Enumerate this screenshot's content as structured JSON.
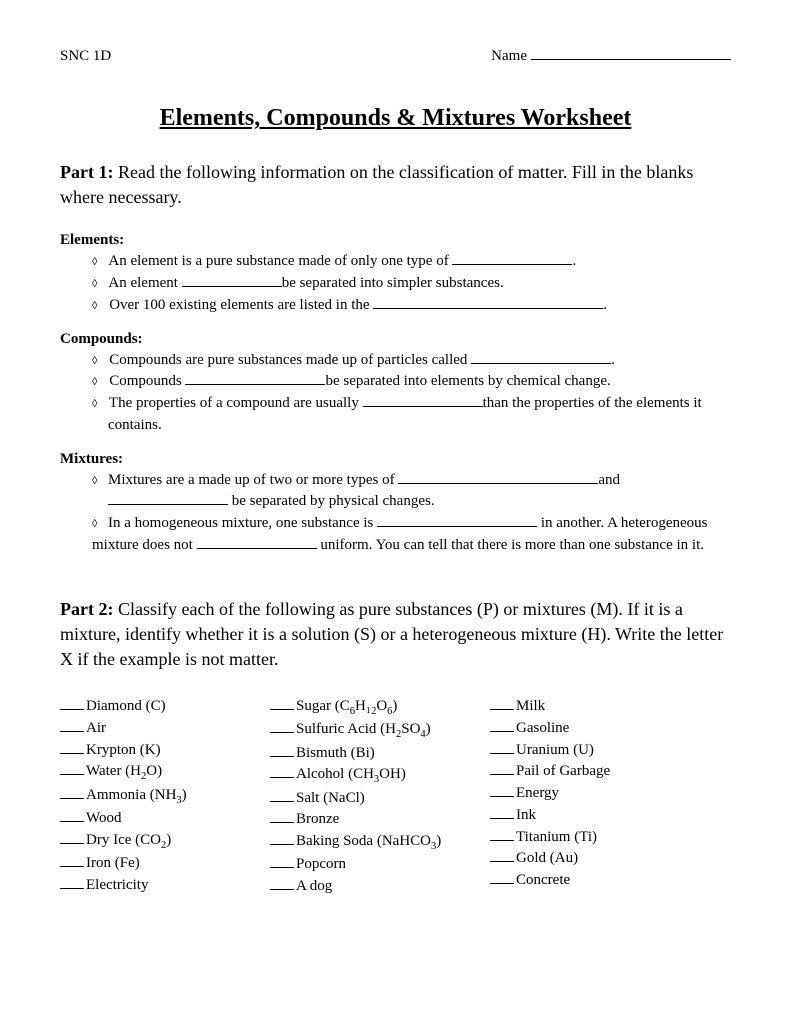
{
  "header": {
    "course_code": "SNC 1D",
    "name_label": "Name"
  },
  "title": "Elements, Compounds & Mixtures Worksheet",
  "part1": {
    "label": "Part 1:",
    "text": "Read the following information on the classification of matter.  Fill in the blanks where necessary.",
    "sections": {
      "elements": {
        "heading": "Elements:",
        "item1_a": "An element is a pure substance made of only one type of ",
        "item1_b": ".",
        "item2_a": "An element ",
        "item2_b": "be separated into simpler substances.",
        "item3_a": "Over 100 existing elements are listed in the ",
        "item3_b": "."
      },
      "compounds": {
        "heading": "Compounds:",
        "item1_a": "Compounds are pure substances made up of particles called ",
        "item1_b": ".",
        "item2_a": "Compounds ",
        "item2_b": "be separated into elements by chemical change.",
        "item3_a": "The properties of a compound are usually ",
        "item3_b": "than the properties of the elements it contains."
      },
      "mixtures": {
        "heading": "Mixtures:",
        "item1_a": "Mixtures are a made up of two or more types of ",
        "item1_b": "and",
        "item1_c": " be separated by physical changes.",
        "item2_a": "In a homogeneous mixture, one substance is ",
        "item2_b": " in another.  A heterogeneous mixture does not ",
        "item2_c": " uniform. You can tell that there is more than one substance in it."
      }
    }
  },
  "part2": {
    "label": "Part 2:",
    "text": "Classify each of the following as pure substances (P) or mixtures (M).  If it is a mixture, identify whether it is a solution (S) or a heterogeneous mixture (H).  Write the letter X if the example is not matter.",
    "columns": [
      [
        "Diamond (C)",
        "Air",
        "Krypton (K)",
        "Water (H₂O)",
        "Ammonia (NH₃)",
        "Wood",
        "Dry Ice (CO₂)",
        "Iron (Fe)",
        "Electricity"
      ],
      [
        "Sugar (C₆H₁₂O₆)",
        "Sulfuric Acid (H₂SO₄)",
        "Bismuth (Bi)",
        "Alcohol (CH₃OH)",
        "Salt (NaCl)",
        "Bronze",
        "Baking Soda (NaHCO₃)",
        "Popcorn",
        "A dog"
      ],
      [
        "Milk",
        "Gasoline",
        "Uranium (U)",
        "Pail of Garbage",
        "Energy",
        "Ink",
        "Titanium (Ti)",
        "Gold (Au)",
        "Concrete"
      ]
    ]
  },
  "colors": {
    "page_bg": "#ffffff",
    "text": "#000000",
    "surround": "#e8e8e8"
  },
  "typography": {
    "body_fontsize": 15,
    "title_fontsize": 24,
    "intro_fontsize": 18,
    "font_family": "Palatino"
  }
}
